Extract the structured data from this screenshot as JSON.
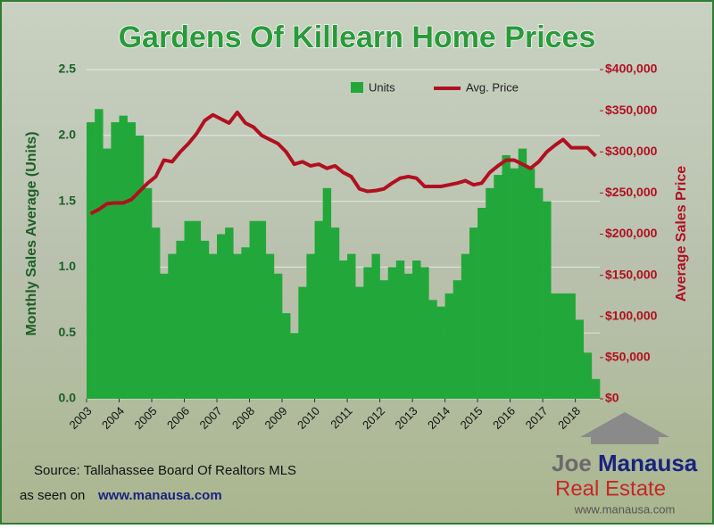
{
  "chart_data": {
    "type": "bar-line",
    "title": "Gardens Of Killearn Home Prices",
    "y_label": "Monthly Sales Average (Units)",
    "y2_label": "Average Sales Price",
    "x": [
      2003,
      2003.25,
      2003.5,
      2003.75,
      2004,
      2004.25,
      2004.5,
      2004.75,
      2005,
      2005.25,
      2005.5,
      2005.75,
      2006,
      2006.25,
      2006.5,
      2006.75,
      2007,
      2007.25,
      2007.5,
      2007.75,
      2008,
      2008.25,
      2008.5,
      2008.75,
      2009,
      2009.25,
      2009.5,
      2009.75,
      2010,
      2010.25,
      2010.5,
      2010.75,
      2011,
      2011.25,
      2011.5,
      2011.75,
      2012,
      2012.25,
      2012.5,
      2012.75,
      2013,
      2013.25,
      2013.5,
      2013.75,
      2014,
      2014.25,
      2014.5,
      2014.75,
      2015,
      2015.25,
      2015.5,
      2015.75,
      2016,
      2016.25,
      2016.5,
      2016.75,
      2017,
      2017.25,
      2017.5,
      2017.75,
      2018,
      2018.25,
      2018.5
    ],
    "xlim": [
      2003,
      2018.75
    ],
    "xticks": [
      2003,
      2004,
      2005,
      2006,
      2007,
      2008,
      2009,
      2010,
      2011,
      2012,
      2013,
      2014,
      2015,
      2016,
      2017,
      2018
    ],
    "ylim": [
      0,
      2.5
    ],
    "yticks": [
      {
        "value": 0,
        "label": "0.0"
      },
      0.5,
      {
        "value": 1,
        "label": "1.0"
      },
      1.5,
      {
        "value": 2,
        "label": "2.0"
      },
      2.5
    ],
    "y2lim": [
      0,
      400000
    ],
    "y2ticks": [
      {
        "value": 0,
        "label": "$0"
      },
      {
        "value": 50000,
        "label": "$50,000"
      },
      {
        "value": 100000,
        "label": "$100,000"
      },
      {
        "value": 150000,
        "label": "$150,000"
      },
      {
        "value": 200000,
        "label": "$200,000"
      },
      {
        "value": 250000,
        "label": "$250,000"
      },
      {
        "value": 300000,
        "label": "$300,000"
      },
      {
        "value": 350000,
        "label": "$350,000"
      },
      {
        "value": 400000,
        "label": "$400,000"
      }
    ],
    "grid": true,
    "series": [
      {
        "name": "Units",
        "color": "#22a83a",
        "kind": "bar",
        "values": [
          2.1,
          2.2,
          1.9,
          2.1,
          2.15,
          2.1,
          2.0,
          1.6,
          1.3,
          0.95,
          1.1,
          1.2,
          1.35,
          1.35,
          1.2,
          1.1,
          1.25,
          1.3,
          1.1,
          1.15,
          1.35,
          1.35,
          1.1,
          0.95,
          0.65,
          0.5,
          0.85,
          1.1,
          1.35,
          1.6,
          1.3,
          1.05,
          1.1,
          0.85,
          1.0,
          1.1,
          0.9,
          1.0,
          1.05,
          0.95,
          1.05,
          1.0,
          0.75,
          0.7,
          0.8,
          0.9,
          1.1,
          1.3,
          1.45,
          1.6,
          1.7,
          1.85,
          1.75,
          1.9,
          1.75,
          1.6,
          1.5,
          0.8,
          0.8,
          0.8,
          0.6,
          0.35,
          0.15
        ]
      },
      {
        "name": "Avg. Price",
        "color": "#b01020",
        "kind": "line",
        "axis": "y2",
        "values": [
          225000,
          230000,
          237000,
          238000,
          238000,
          242000,
          252000,
          262000,
          270000,
          290000,
          288000,
          300000,
          310000,
          322000,
          338000,
          345000,
          340000,
          335000,
          348000,
          335000,
          330000,
          320000,
          315000,
          310000,
          300000,
          285000,
          288000,
          283000,
          285000,
          280000,
          283000,
          275000,
          270000,
          255000,
          252000,
          253000,
          255000,
          262000,
          268000,
          270000,
          268000,
          258000,
          258000,
          258000,
          260000,
          262000,
          265000,
          260000,
          262000,
          275000,
          283000,
          290000,
          290000,
          285000,
          280000,
          288000,
          300000,
          308000,
          315000,
          305000,
          305000,
          305000,
          295000
        ]
      }
    ]
  },
  "footer": {
    "source": "Source: Tallahassee Board Of Realtors MLS",
    "seen_prefix": "as seen on",
    "seen_url": "www.manausa.com"
  },
  "logo": {
    "joe": "Joe",
    "manausa": "Manausa",
    "real_estate": "Real Estate",
    "url": "www.manausa.com"
  }
}
